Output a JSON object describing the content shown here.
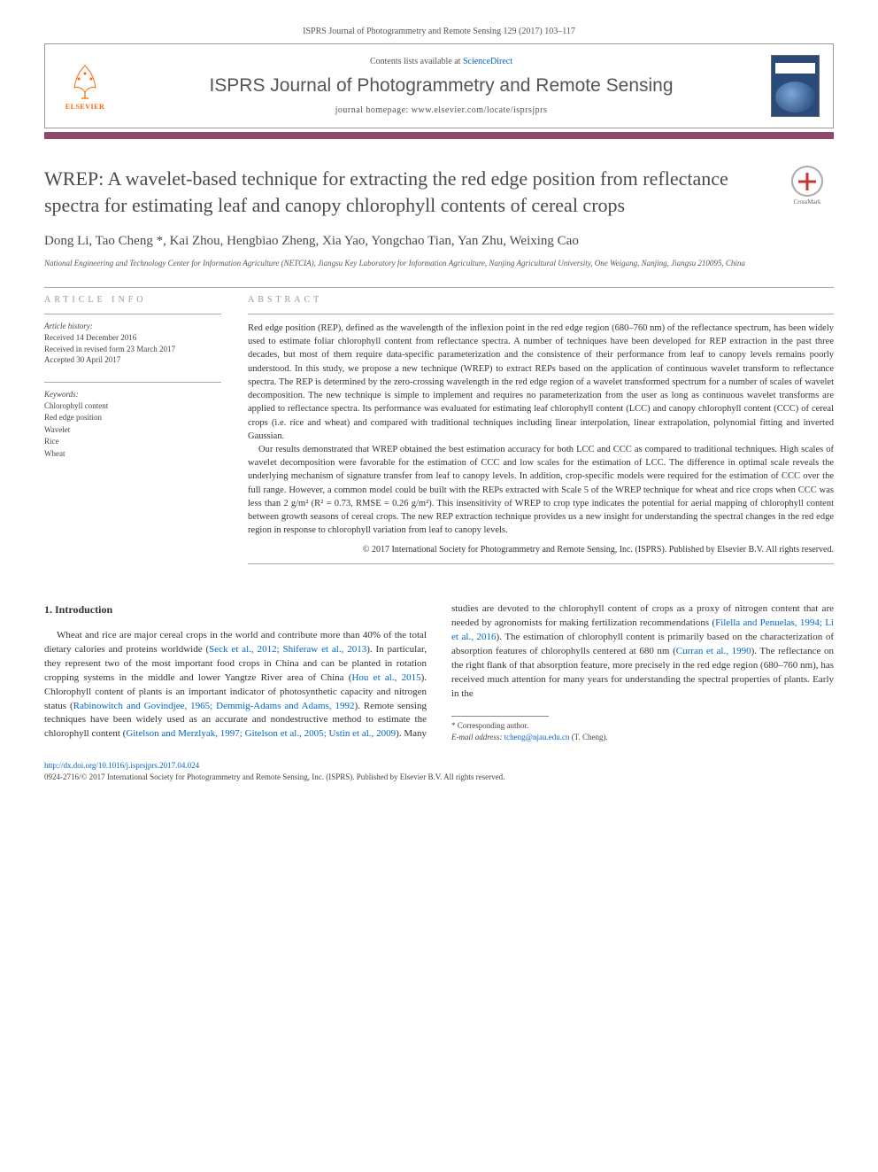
{
  "citation_header": "ISPRS Journal of Photogrammetry and Remote Sensing 129 (2017) 103–117",
  "header": {
    "contents_prefix": "Contents lists available at ",
    "contents_link": "ScienceDirect",
    "journal_name": "ISPRS Journal of Photogrammetry and Remote Sensing",
    "homepage_prefix": "journal homepage: ",
    "homepage_url": "www.elsevier.com/locate/isprsjprs",
    "elsevier_label": "ELSEVIER",
    "crossmark_label": "CrossMark"
  },
  "article": {
    "title": "WREP: A wavelet-based technique for extracting the red edge position from reflectance spectra for estimating leaf and canopy chlorophyll contents of cereal crops",
    "authors": "Dong Li, Tao Cheng *, Kai Zhou, Hengbiao Zheng, Xia Yao, Yongchao Tian, Yan Zhu, Weixing Cao",
    "affiliation": "National Engineering and Technology Center for Information Agriculture (NETCIA), Jiangsu Key Laboratory for Information Agriculture, Nanjing Agricultural University, One Weigang, Nanjing, Jiangsu 210095, China"
  },
  "info": {
    "heading": "ARTICLE INFO",
    "history_label": "Article history:",
    "received": "Received 14 December 2016",
    "revised": "Received in revised form 23 March 2017",
    "accepted": "Accepted 30 April 2017",
    "keywords_label": "Keywords:",
    "keywords": [
      "Chlorophyll content",
      "Red edge position",
      "Wavelet",
      "Rice",
      "Wheat"
    ]
  },
  "abstract": {
    "heading": "ABSTRACT",
    "p1": "Red edge position (REP), defined as the wavelength of the inflexion point in the red edge region (680–760 nm) of the reflectance spectrum, has been widely used to estimate foliar chlorophyll content from reflectance spectra. A number of techniques have been developed for REP extraction in the past three decades, but most of them require data-specific parameterization and the consistence of their performance from leaf to canopy levels remains poorly understood. In this study, we propose a new technique (WREP) to extract REPs based on the application of continuous wavelet transform to reflectance spectra. The REP is determined by the zero-crossing wavelength in the red edge region of a wavelet transformed spectrum for a number of scales of wavelet decomposition. The new technique is simple to implement and requires no parameterization from the user as long as continuous wavelet transforms are applied to reflectance spectra. Its performance was evaluated for estimating leaf chlorophyll content (LCC) and canopy chlorophyll content (CCC) of cereal crops (i.e. rice and wheat) and compared with traditional techniques including linear interpolation, linear extrapolation, polynomial fitting and inverted Gaussian.",
    "p2": "Our results demonstrated that WREP obtained the best estimation accuracy for both LCC and CCC as compared to traditional techniques. High scales of wavelet decomposition were favorable for the estimation of CCC and low scales for the estimation of LCC. The difference in optimal scale reveals the underlying mechanism of signature transfer from leaf to canopy levels. In addition, crop-specific models were required for the estimation of CCC over the full range. However, a common model could be built with the REPs extracted with Scale 5 of the WREP technique for wheat and rice crops when CCC was less than 2 g/m² (R² = 0.73, RMSE = 0.26 g/m²). This insensitivity of WREP to crop type indicates the potential for aerial mapping of chlorophyll content between growth seasons of cereal crops. The new REP extraction technique provides us a new insight for understanding the spectral changes in the red edge region in response to chlorophyll variation from leaf to canopy levels.",
    "copyright": "© 2017 International Society for Photogrammetry and Remote Sensing, Inc. (ISPRS). Published by Elsevier B.V. All rights reserved."
  },
  "introduction": {
    "heading": "1. Introduction",
    "body_html": "Wheat and rice are major cereal crops in the world and contribute more than 40% of the total dietary calories and proteins worldwide (<a>Seck et al., 2012; Shiferaw et al., 2013</a>). In particular, they represent two of the most important food crops in China and can be planted in rotation cropping systems in the middle and lower Yangtze River area of China (<a>Hou et al., 2015</a>). Chlorophyll content of plants is an important indicator of photosynthetic capacity and nitrogen status (<a>Rabinowitch and Govindjee, 1965; Demmig-Adams and Adams, 1992</a>). Remote sensing techniques have been widely used as an accurate and nondestructive method to estimate the chlorophyll content (<a>Gitelson and Merzlyak, 1997; Gitelson et al., 2005; Ustin et al., 2009</a>). Many studies are devoted to the chlorophyll content of crops as a proxy of nitrogen content that are needed by agronomists for making fertilization recommendations (<a>Filella and Penuelas, 1994; Li et al., 2016</a>). The estimation of chlorophyll content is primarily based on the characterization of absorption features of chlorophylls centered at 680 nm (<a>Curran et al., 1990</a>). The reflectance on the right flank of that absorption feature, more precisely in the red edge region (680–760 nm), has received much attention for many years for understanding the spectral properties of plants. Early in the"
  },
  "footnote": {
    "corresponding": "* Corresponding author.",
    "email_label": "E-mail address: ",
    "email": "tcheng@njau.edu.cn",
    "email_name": " (T. Cheng)."
  },
  "footer": {
    "doi_url": "http://dx.doi.org/10.1016/j.isprsjprs.2017.04.024",
    "issn_line": "0924-2716/© 2017 International Society for Photogrammetry and Remote Sensing, Inc. (ISPRS). Published by Elsevier B.V. All rights reserved."
  },
  "colors": {
    "accent_bar": "#8b4a6a",
    "link": "#0066cc",
    "elsevier_orange": "#ff6600",
    "heading_gray": "#4a4a4a"
  }
}
